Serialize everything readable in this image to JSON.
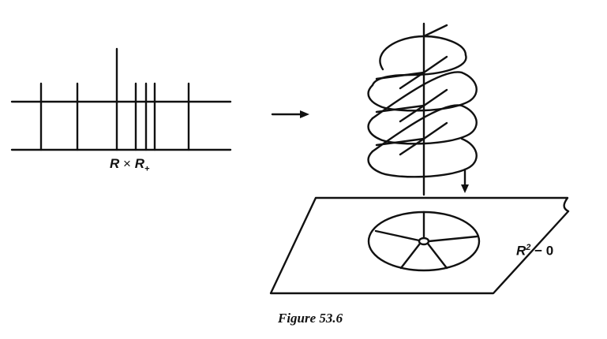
{
  "left_label": {
    "base1": "R",
    "times": "×",
    "base2": "R",
    "sub": "+"
  },
  "right_label": {
    "base": "R",
    "sup": "2",
    "rest": "− 0"
  },
  "caption": "Figure 53.6",
  "colors": {
    "ink": "#111111",
    "paper": "#ffffff"
  }
}
